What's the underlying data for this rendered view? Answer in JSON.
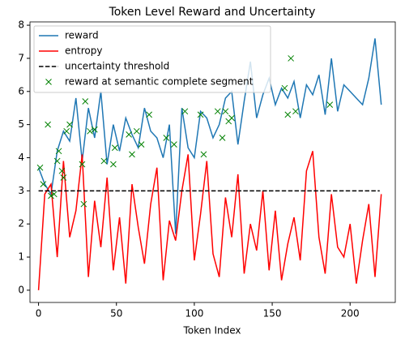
{
  "chart_data": {
    "type": "line",
    "title": "Token Level Reward and Uncertainty",
    "xlabel": "Token Index",
    "xlim": [
      -5.5,
      229
    ],
    "ylim": [
      -0.37,
      8.1
    ],
    "xticks": [
      0,
      50,
      100,
      150,
      200
    ],
    "yticks": [
      0,
      1,
      2,
      3,
      4,
      5,
      6,
      7,
      8
    ],
    "grid": false,
    "legend": "upper left",
    "series": [
      {
        "name": "reward",
        "type": "line",
        "color": "#1f77b4",
        "x": [
          0,
          4,
          8,
          12,
          16,
          20,
          24,
          28,
          32,
          36,
          40,
          44,
          48,
          52,
          56,
          60,
          64,
          68,
          72,
          76,
          80,
          84,
          88,
          92,
          96,
          100,
          104,
          108,
          112,
          116,
          120,
          124,
          128,
          132,
          136,
          140,
          144,
          148,
          152,
          156,
          160,
          164,
          168,
          172,
          176,
          180,
          184,
          188,
          192,
          196,
          200,
          204,
          208,
          212,
          216,
          220
        ],
        "values": [
          3.7,
          3.2,
          2.9,
          4.2,
          4.8,
          4.5,
          5.8,
          3.9,
          5.5,
          4.6,
          6.0,
          3.8,
          5.0,
          4.2,
          5.2,
          4.7,
          4.3,
          5.5,
          4.8,
          4.6,
          4.0,
          5.0,
          1.7,
          5.5,
          4.3,
          4.0,
          5.4,
          5.2,
          4.6,
          5.0,
          5.8,
          6.0,
          4.4,
          5.7,
          6.9,
          5.2,
          5.9,
          6.4,
          5.6,
          6.1,
          5.8,
          6.3,
          5.2,
          6.2,
          5.9,
          6.5,
          5.3,
          7.0,
          5.4,
          6.2,
          6.0,
          5.8,
          5.6,
          6.4,
          7.6,
          5.6
        ]
      },
      {
        "name": "entropy",
        "type": "line",
        "color": "#ff0000",
        "x": [
          0,
          4,
          8,
          12,
          16,
          20,
          24,
          28,
          32,
          36,
          40,
          44,
          48,
          52,
          56,
          60,
          64,
          68,
          72,
          76,
          80,
          84,
          88,
          92,
          96,
          100,
          104,
          108,
          112,
          116,
          120,
          124,
          128,
          132,
          136,
          140,
          144,
          148,
          152,
          156,
          160,
          164,
          168,
          172,
          176,
          180,
          184,
          188,
          192,
          196,
          200,
          204,
          208,
          212,
          216,
          220
        ],
        "values": [
          0,
          2.9,
          3.2,
          1.0,
          3.9,
          1.6,
          2.4,
          4.1,
          0.4,
          2.7,
          1.3,
          3.4,
          0.6,
          2.2,
          0.2,
          3.2,
          1.9,
          0.8,
          2.6,
          3.7,
          0.3,
          2.1,
          1.5,
          3.0,
          4.1,
          0.9,
          2.3,
          3.9,
          1.1,
          0.4,
          2.8,
          1.6,
          3.5,
          0.5,
          2.0,
          1.2,
          3.0,
          0.6,
          2.4,
          0.3,
          1.4,
          2.2,
          0.9,
          3.6,
          4.2,
          1.6,
          0.5,
          2.9,
          1.3,
          1.0,
          2.0,
          0.2,
          1.5,
          2.6,
          0.4,
          2.9
        ]
      },
      {
        "name": "uncertainty threshold",
        "type": "dashed",
        "color": "#000000",
        "x": [
          0,
          219
        ],
        "values": [
          3,
          3
        ]
      },
      {
        "name": "reward at semantic complete segment",
        "type": "scatter",
        "color": "#008000",
        "x": [
          1,
          3,
          6,
          8,
          10,
          12,
          13,
          15,
          16,
          18,
          20,
          28,
          29,
          30,
          33,
          36,
          42,
          48,
          49,
          58,
          60,
          63,
          66,
          71,
          82,
          87,
          94,
          104,
          106,
          115,
          118,
          120,
          122,
          124,
          158,
          160,
          162,
          165,
          187
        ],
        "values": [
          3.7,
          3.2,
          5.0,
          2.85,
          2.9,
          3.9,
          4.2,
          3.6,
          3.4,
          4.8,
          5.0,
          3.8,
          2.6,
          5.7,
          4.8,
          4.85,
          3.9,
          3.8,
          4.3,
          4.7,
          4.1,
          4.8,
          4.4,
          5.3,
          4.6,
          4.4,
          5.4,
          5.3,
          4.1,
          5.4,
          4.6,
          5.4,
          5.1,
          5.2,
          6.1,
          5.3,
          7.0,
          5.4,
          5.6
        ]
      }
    ]
  }
}
